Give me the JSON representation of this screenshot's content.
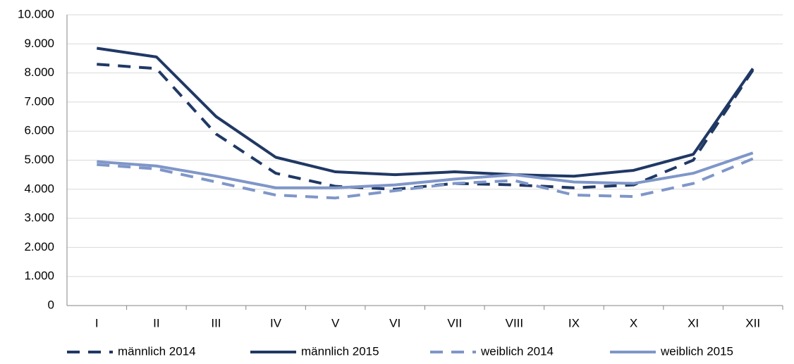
{
  "chart_data": {
    "type": "line",
    "categories": [
      "I",
      "II",
      "III",
      "IV",
      "V",
      "VI",
      "VII",
      "VIII",
      "IX",
      "X",
      "XI",
      "XII"
    ],
    "series": [
      {
        "name": "männlich 2014",
        "color": "#203864",
        "dash": true,
        "values": [
          8300,
          8150,
          5900,
          4550,
          4100,
          4000,
          4200,
          4150,
          4050,
          4150,
          5000,
          8100
        ]
      },
      {
        "name": "männlich 2015",
        "color": "#203864",
        "dash": false,
        "values": [
          8850,
          8550,
          6500,
          5100,
          4600,
          4500,
          4600,
          4500,
          4450,
          4650,
          5200,
          8150
        ]
      },
      {
        "name": "weiblich 2014",
        "color": "#7f96c8",
        "dash": true,
        "values": [
          4850,
          4700,
          4250,
          3800,
          3700,
          3950,
          4200,
          4300,
          3800,
          3750,
          4200,
          5050
        ]
      },
      {
        "name": "weiblich 2015",
        "color": "#7f96c8",
        "dash": false,
        "values": [
          4950,
          4800,
          4450,
          4050,
          4050,
          4150,
          4350,
          4500,
          4250,
          4200,
          4550,
          5250
        ]
      }
    ],
    "ylim": [
      0,
      10000
    ],
    "yticks": [
      0,
      {
        "value": 1000,
        "label": "1.000"
      },
      {
        "value": 2000,
        "label": "2.000"
      },
      {
        "value": 3000,
        "label": "3.000"
      },
      {
        "value": 4000,
        "label": "4.000"
      },
      {
        "value": 5000,
        "label": "5.000"
      },
      {
        "value": 6000,
        "label": "6.000"
      },
      {
        "value": 7000,
        "label": "7.000"
      },
      {
        "value": 8000,
        "label": "8.000"
      },
      {
        "value": 9000,
        "label": "9.000"
      },
      {
        "value": 10000,
        "label": "10.000"
      }
    ],
    "grid": true,
    "legend": "bottom"
  }
}
